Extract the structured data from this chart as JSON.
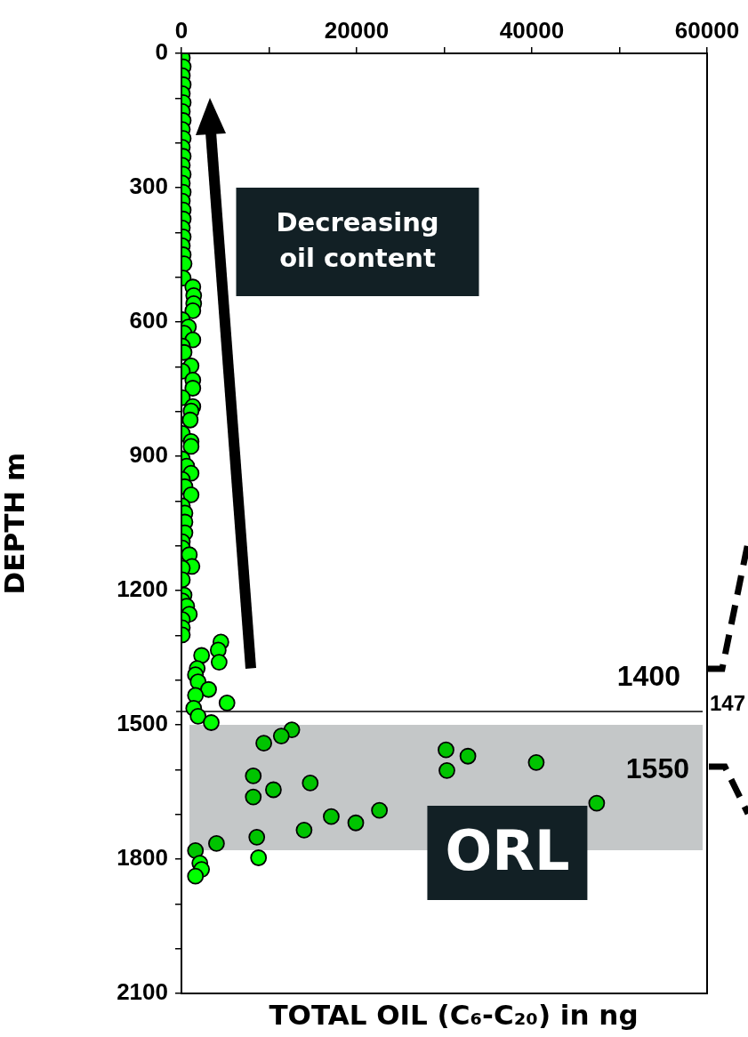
{
  "chart_data": {
    "type": "scatter",
    "xlabel": "TOTAL OIL (C₆-C₂₀) in ng",
    "ylabel": "DEPTH m",
    "marker": "circle",
    "xlim": [
      0,
      60000
    ],
    "xticks": [
      0,
      {
        "value": 10000,
        "label": null
      },
      20000,
      {
        "value": 30000,
        "label": null
      },
      40000,
      {
        "value": 50000,
        "label": null
      },
      60000
    ],
    "ylim": [
      2100,
      0
    ],
    "yticks": [
      0,
      {
        "value": 100,
        "label": null
      },
      {
        "value": 200,
        "label": null
      },
      300,
      {
        "value": 400,
        "label": null
      },
      {
        "value": 500,
        "label": null
      },
      600,
      {
        "value": 700,
        "label": null
      },
      {
        "value": 800,
        "label": null
      },
      900,
      {
        "value": 1000,
        "label": null
      },
      {
        "value": 1100,
        "label": null
      },
      1200,
      {
        "value": 1300,
        "label": null
      },
      {
        "value": 1400,
        "label": null
      },
      1500,
      {
        "value": 1600,
        "label": null
      },
      {
        "value": 1700,
        "label": null
      },
      1800,
      {
        "value": 1900,
        "label": null
      },
      {
        "value": 2000,
        "label": null
      },
      2100
    ],
    "x": [
      100,
      200,
      100,
      200,
      100,
      200,
      100,
      200,
      100,
      200,
      100,
      200,
      100,
      200,
      100,
      200,
      100,
      200,
      200,
      100,
      200,
      100,
      200,
      300,
      200,
      1300,
      1400,
      1400,
      1300,
      100,
      800,
      300,
      1300,
      100,
      300,
      1100,
      100,
      1300,
      1300,
      100,
      1300,
      1100,
      1000,
      100,
      1100,
      1100,
      100,
      600,
      1100,
      100,
      400,
      1100,
      100,
      400,
      400,
      400,
      100,
      100,
      900,
      1200,
      100,
      100,
      300,
      100,
      600,
      900,
      100,
      100,
      100,
      4500,
      4200,
      4300,
      2300,
      1800,
      1600,
      1900,
      3100,
      1600,
      5200,
      1400,
      1900,
      3400,
      12600,
      11400,
      9400,
      8200,
      10500,
      8200,
      14700,
      17100,
      19900,
      22600,
      14000,
      8600,
      8800,
      4000,
      1600,
      2100,
      2300,
      1600,
      30200,
      32700,
      30300,
      40500,
      47400
    ],
    "values": [
      10,
      30,
      50,
      70,
      90,
      110,
      130,
      150,
      170,
      190,
      210,
      230,
      250,
      270,
      290,
      310,
      330,
      350,
      370,
      390,
      410,
      430,
      450,
      470,
      502,
      522,
      541,
      559,
      575,
      595,
      611,
      625,
      640,
      654,
      668,
      698,
      710,
      730,
      748,
      769,
      789,
      799,
      819,
      849,
      867,
      878,
      906,
      922,
      938,
      952,
      968,
      986,
      1011,
      1027,
      1047,
      1071,
      1091,
      1105,
      1120,
      1146,
      1150,
      1176,
      1210,
      1223,
      1235,
      1253,
      1265,
      1283,
      1299,
      1315,
      1333,
      1360,
      1345,
      1374,
      1388,
      1404,
      1421,
      1434,
      1451,
      1463,
      1481,
      1495,
      1511,
      1525,
      1541,
      1614,
      1645,
      1661,
      1630,
      1705,
      1719,
      1691,
      1735,
      1751,
      1797,
      1765,
      1781,
      1809,
      1823,
      1838,
      1556,
      1570,
      1602,
      1584,
      1675
    ],
    "colors": [
      "#00ff00",
      "#00ff00",
      "#00ff00",
      "#00ff00",
      "#00ff00",
      "#00ff00",
      "#00ff00",
      "#00ff00",
      "#00ff00",
      "#00ff00",
      "#00ff00",
      "#00ff00",
      "#00ff00",
      "#00ff00",
      "#00ff00",
      "#00ff00",
      "#00ff00",
      "#00ff00",
      "#00ff00",
      "#00ff00",
      "#00ff00",
      "#00ff00",
      "#00ff00",
      "#00ff00",
      "#00ff00",
      "#00ff00",
      "#00ff00",
      "#00ff00",
      "#00ff00",
      "#00ff00",
      "#00ff00",
      "#00ff00",
      "#00ff00",
      "#00ff00",
      "#00ff00",
      "#00ff00",
      "#00ff00",
      "#00ff00",
      "#00ff00",
      "#00ff00",
      "#00ff00",
      "#00ff00",
      "#00ff00",
      "#00ff00",
      "#00ff00",
      "#00ff00",
      "#00ff00",
      "#00ff00",
      "#00ff00",
      "#00ff00",
      "#00ff00",
      "#00ff00",
      "#00ff00",
      "#00ff00",
      "#00ff00",
      "#00ff00",
      "#00ff00",
      "#00ff00",
      "#00ff00",
      "#00ff00",
      "#00ff00",
      "#00ff00",
      "#00ff00",
      "#00ff00",
      "#00ff00",
      "#00ff00",
      "#00ff00",
      "#00ff00",
      "#00ff00",
      "#00ff00",
      "#00ff00",
      "#00ff00",
      "#00ff00",
      "#00ff00",
      "#00ff00",
      "#00ff00",
      "#00ff00",
      "#00ff00",
      "#00ff00",
      "#00ff00",
      "#00ff00",
      "#00ff00",
      "#00c400",
      "#00c400",
      "#00c400",
      "#00c400",
      "#00c400",
      "#00c400",
      "#00c400",
      "#00c400",
      "#00c400",
      "#00c400",
      "#00c400",
      "#00c400",
      "#00ff00",
      "#00c400",
      "#00c400",
      "#00ff00",
      "#00ff00",
      "#00ff00",
      "#00c400",
      "#00c400",
      "#00c400",
      "#00c400",
      "#00c400"
    ],
    "bands": [
      {
        "axis": "y",
        "from": 1500,
        "to": 1780,
        "label": "ORL",
        "color": "#c4c7c8"
      }
    ],
    "ref_lines": [
      {
        "axis": "y",
        "value": 1470
      }
    ],
    "annotations": [
      "Decreasing oil content",
      "1400",
      "1550",
      "147"
    ]
  }
}
